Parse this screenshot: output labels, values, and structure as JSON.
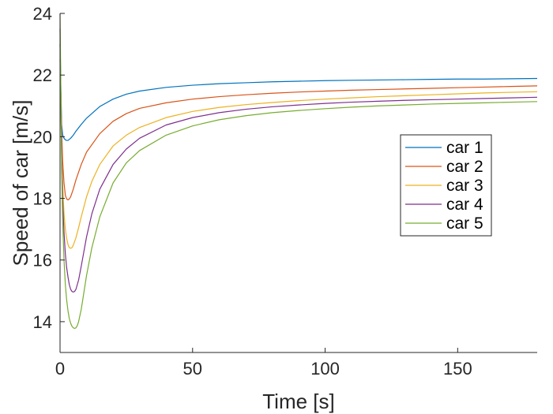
{
  "chart_data": {
    "type": "line",
    "xlabel": "Time [s]",
    "ylabel": "Speed of car [m/s]",
    "xlim": [
      0,
      180
    ],
    "ylim": [
      13,
      24
    ],
    "xticks": [
      0,
      50,
      100,
      150
    ],
    "yticks": [
      14,
      16,
      18,
      20,
      22,
      24
    ],
    "grid": false,
    "legend_position": "right, middle",
    "series": [
      {
        "name": "car 1",
        "color": "#0072BD",
        "x": [
          0,
          0.3,
          0.6,
          1,
          1.5,
          2,
          2.5,
          3,
          4,
          5,
          6,
          8,
          10,
          15,
          20,
          25,
          30,
          40,
          50,
          60,
          70,
          80,
          90,
          100,
          110,
          120,
          130,
          140,
          150,
          160,
          170,
          180
        ],
        "y": [
          23.0,
          21.6,
          20.4,
          20.05,
          19.95,
          19.9,
          19.88,
          19.88,
          19.95,
          20.05,
          20.18,
          20.4,
          20.6,
          20.98,
          21.22,
          21.38,
          21.48,
          21.6,
          21.67,
          21.72,
          21.75,
          21.78,
          21.8,
          21.82,
          21.83,
          21.84,
          21.85,
          21.86,
          21.87,
          21.87,
          21.88,
          21.89
        ]
      },
      {
        "name": "car 2",
        "color": "#D95319",
        "x": [
          0,
          0.3,
          0.6,
          1,
          1.5,
          2,
          2.5,
          3,
          3.5,
          4,
          5,
          6,
          8,
          10,
          15,
          20,
          25,
          30,
          40,
          50,
          60,
          70,
          80,
          90,
          100,
          110,
          120,
          130,
          140,
          150,
          160,
          170,
          180
        ],
        "y": [
          22.5,
          21.4,
          20.2,
          19.2,
          18.5,
          18.1,
          17.98,
          17.95,
          17.98,
          18.05,
          18.3,
          18.6,
          19.1,
          19.5,
          20.1,
          20.5,
          20.75,
          20.92,
          21.1,
          21.22,
          21.3,
          21.36,
          21.41,
          21.45,
          21.48,
          21.51,
          21.53,
          21.55,
          21.57,
          21.59,
          21.61,
          21.63,
          21.65
        ]
      },
      {
        "name": "car 3",
        "color": "#EDB120",
        "x": [
          0,
          0.3,
          0.6,
          1,
          1.5,
          2,
          2.5,
          3,
          3.5,
          4,
          4.5,
          5,
          6,
          7,
          8,
          10,
          12,
          15,
          20,
          25,
          30,
          40,
          50,
          60,
          70,
          80,
          90,
          100,
          110,
          120,
          130,
          140,
          150,
          160,
          170,
          180
        ],
        "y": [
          23.0,
          21.3,
          19.6,
          18.4,
          17.5,
          17.0,
          16.7,
          16.5,
          16.4,
          16.38,
          16.4,
          16.48,
          16.72,
          17.05,
          17.4,
          18.05,
          18.55,
          19.1,
          19.7,
          20.05,
          20.3,
          20.62,
          20.82,
          20.95,
          21.04,
          21.11,
          21.17,
          21.22,
          21.26,
          21.3,
          21.33,
          21.36,
          21.39,
          21.42,
          21.44,
          21.46
        ]
      },
      {
        "name": "car 4",
        "color": "#7E2F8E",
        "x": [
          0,
          0.3,
          0.6,
          1,
          1.5,
          2,
          2.5,
          3,
          3.5,
          4,
          4.5,
          5,
          5.5,
          6,
          7,
          8,
          10,
          12,
          15,
          20,
          25,
          30,
          40,
          50,
          60,
          70,
          80,
          90,
          100,
          110,
          120,
          130,
          140,
          150,
          160,
          170,
          180
        ],
        "y": [
          23.5,
          21.2,
          19.4,
          17.9,
          16.9,
          16.2,
          15.75,
          15.45,
          15.2,
          15.05,
          14.98,
          14.96,
          14.98,
          15.05,
          15.35,
          15.8,
          16.75,
          17.5,
          18.3,
          19.1,
          19.6,
          19.95,
          20.38,
          20.62,
          20.78,
          20.89,
          20.97,
          21.03,
          21.08,
          21.12,
          21.15,
          21.18,
          21.2,
          21.22,
          21.24,
          21.26,
          21.28
        ]
      },
      {
        "name": "car 5",
        "color": "#77AC30",
        "x": [
          0,
          0.3,
          0.6,
          1,
          1.5,
          2,
          2.5,
          3,
          3.5,
          4,
          4.5,
          5,
          5.5,
          6,
          6.5,
          7,
          8,
          10,
          12,
          15,
          20,
          25,
          30,
          40,
          50,
          60,
          70,
          80,
          90,
          100,
          110,
          120,
          130,
          140,
          150,
          160,
          170,
          180
        ],
        "y": [
          24.0,
          21.5,
          19.0,
          17.2,
          16.0,
          15.2,
          14.7,
          14.35,
          14.1,
          13.95,
          13.85,
          13.8,
          13.78,
          13.8,
          13.87,
          14.0,
          14.4,
          15.5,
          16.4,
          17.4,
          18.5,
          19.15,
          19.55,
          20.05,
          20.35,
          20.55,
          20.68,
          20.78,
          20.85,
          20.91,
          20.96,
          21.0,
          21.03,
          21.06,
          21.08,
          21.1,
          21.12,
          21.14
        ]
      }
    ]
  }
}
